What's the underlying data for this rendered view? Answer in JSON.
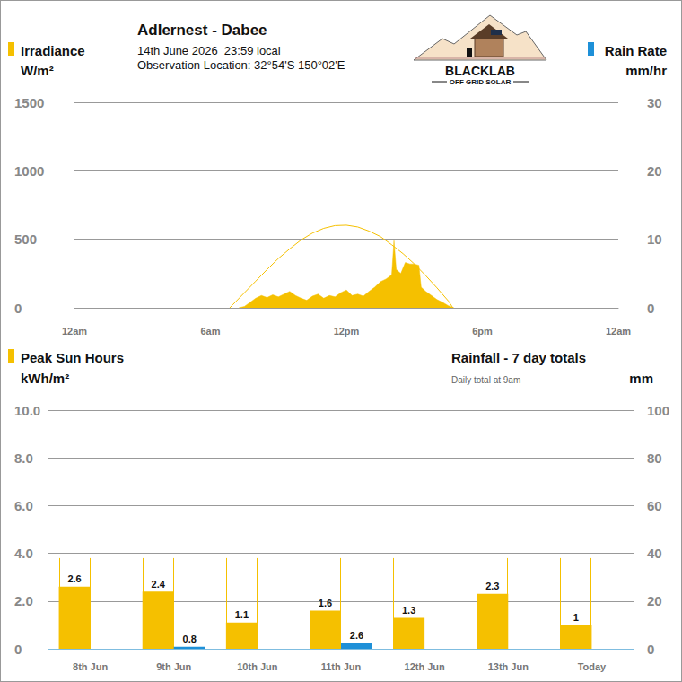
{
  "header": {
    "title": "Adlernest - Dabee",
    "date": "14th June 2026  23:59 local",
    "location": "Observation Location: 32°54'S 150°02'E",
    "logo": {
      "name": "BLACKLAB",
      "tagline": "OFF GRID SOLAR"
    }
  },
  "chart_data": [
    {
      "type": "area",
      "y_label": "Irradiance",
      "y_unit": "W/m²",
      "y2_label": "Rain Rate",
      "y2_unit": "mm/hr",
      "xlim": [
        0,
        24
      ],
      "xticks": [
        {
          "value": 0,
          "label": "12am"
        },
        {
          "value": 6,
          "label": "6am"
        },
        {
          "value": 12,
          "label": "12pm"
        },
        {
          "value": 18,
          "label": "6pm"
        },
        {
          "value": 24,
          "label": "12am"
        }
      ],
      "ylim": [
        0,
        1500
      ],
      "yticks": [
        0,
        500,
        1000,
        1500
      ],
      "y2lim": [
        0,
        30
      ],
      "y2ticks": [
        0,
        10,
        20,
        30
      ],
      "grid": true,
      "series": [
        {
          "type": "area",
          "color": "#f5c000",
          "x": [
            7.25,
            7.5,
            7.75,
            8.0,
            8.25,
            8.5,
            8.75,
            9.0,
            9.25,
            9.5,
            9.75,
            10.0,
            10.25,
            10.5,
            10.75,
            11.0,
            11.25,
            11.5,
            11.75,
            12.0,
            12.25,
            12.5,
            12.75,
            13.0,
            13.25,
            13.5,
            13.75,
            14.0,
            14.1,
            14.2,
            14.4,
            14.6,
            14.8,
            15.0,
            15.2,
            15.3,
            15.5,
            15.75,
            16.0,
            16.25,
            16.5,
            16.75
          ],
          "values": [
            0,
            10,
            40,
            70,
            90,
            75,
            95,
            80,
            100,
            120,
            90,
            70,
            55,
            85,
            100,
            70,
            90,
            80,
            110,
            130,
            90,
            100,
            85,
            120,
            150,
            190,
            210,
            240,
            490,
            280,
            250,
            330,
            320,
            320,
            310,
            150,
            120,
            90,
            60,
            40,
            15,
            0
          ]
        },
        {
          "type": "line",
          "color": "#f5c000",
          "x": [
            6.85,
            7.0,
            7.5,
            8.0,
            8.5,
            9.0,
            9.5,
            10.0,
            10.5,
            11.0,
            11.5,
            12.0,
            12.5,
            13.0,
            13.5,
            14.0,
            14.5,
            15.0,
            15.5,
            16.0,
            16.5,
            16.7
          ],
          "values": [
            0,
            25,
            110,
            195,
            280,
            360,
            430,
            495,
            545,
            580,
            600,
            603,
            590,
            560,
            520,
            460,
            395,
            320,
            235,
            145,
            50,
            0
          ]
        }
      ]
    },
    {
      "type": "bar",
      "y_label": "Peak Sun Hours",
      "y_unit": "kWh/m²",
      "title": "Rainfall - 7 day totals",
      "subtitle": "Daily total at 9am",
      "y2_unit": "mm",
      "categories": [
        "8th Jun",
        "9th Jun",
        "10th Jun",
        "11th Jun",
        "12th Jun",
        "13th Jun",
        "Today"
      ],
      "ylim": [
        0,
        10
      ],
      "yticks": [
        0,
        {
          "value": 2,
          "label": "2.0"
        },
        {
          "value": 4,
          "label": "4.0"
        },
        {
          "value": 6,
          "label": "6.0"
        },
        {
          "value": 8,
          "label": "8.0"
        },
        {
          "value": 10,
          "label": "10.0"
        }
      ],
      "y2lim": [
        0,
        100
      ],
      "y2ticks": [
        0,
        20,
        40,
        60,
        80,
        100
      ],
      "grid": true,
      "series": [
        {
          "type": "outline",
          "color": "#f5c000",
          "values": [
            3.8,
            3.8,
            3.8,
            3.8,
            3.8,
            3.8,
            3.8
          ]
        },
        {
          "type": "bar",
          "color": "#f5c000",
          "values": [
            2.6,
            2.4,
            1.1,
            1.6,
            1.3,
            2.3,
            1.0
          ],
          "data_labels": true
        },
        {
          "type": "bar",
          "axis": "y2",
          "color": "#1e90d8",
          "values": [
            0,
            0.8,
            0,
            2.6,
            0,
            0,
            0
          ],
          "value_labels": [
            null,
            "0.8",
            null,
            "2.6",
            null,
            null,
            null
          ],
          "data_labels": true
        }
      ]
    }
  ]
}
